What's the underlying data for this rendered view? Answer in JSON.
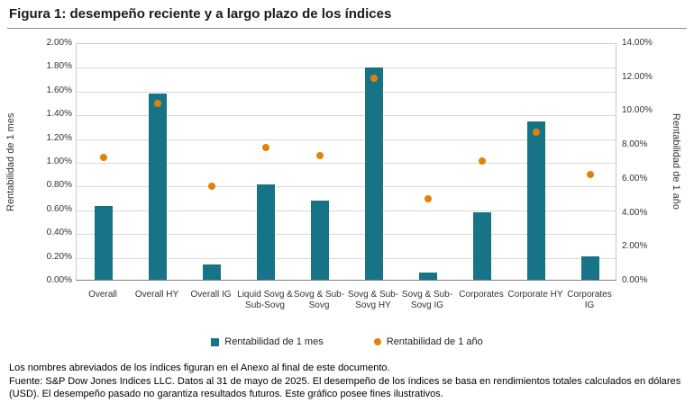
{
  "title": "Figura 1: desempeño reciente y a largo plazo de los índices",
  "chart_data": {
    "type": "bar",
    "categories": [
      "Overall",
      "Overall HY",
      "Overall IG",
      "Liquid Sovg & Sub-Sovg",
      "Sovg & Sub-Sovg",
      "Sovg & Sub-Sovg HY",
      "Sovg & Sub-Sovg IG",
      "Corporates",
      "Corporate HY",
      "Corporates IG"
    ],
    "series": [
      {
        "name": "Rentabilidad de 1 mes",
        "type": "bar",
        "axis": "left",
        "color": "#177487",
        "values": [
          0.62,
          1.57,
          0.13,
          0.8,
          0.67,
          1.79,
          0.06,
          0.57,
          1.33,
          0.2
        ]
      },
      {
        "name": "Rentabilidad de 1 año",
        "type": "scatter",
        "axis": "right",
        "color": "#E0820D",
        "values": [
          7.3,
          10.5,
          5.6,
          7.9,
          7.4,
          12.0,
          4.9,
          7.1,
          8.8,
          6.3
        ]
      }
    ],
    "left_axis": {
      "label": "Rentabilidad de 1 mes",
      "min": 0,
      "max": 2,
      "step": 0.2,
      "suffix": "%"
    },
    "right_axis": {
      "label": "Rentabilidad de 1 año",
      "min": 0,
      "max": 14,
      "step": 2,
      "suffix": "%"
    },
    "grid": true,
    "legend_position": "bottom"
  },
  "footnotes": {
    "line1": "Los nombres abreviados de los índices figuran en el Anexo al final de este documento.",
    "line2": "Fuente: S&P Dow Jones Indices LLC. Datos al 31 de mayo de 2025. El desempeño de los índices se basa en rendimientos totales calculados en dólares (USD). El desempeño pasado no garantiza resultados futuros. Este gráfico posee fines ilustrativos."
  }
}
